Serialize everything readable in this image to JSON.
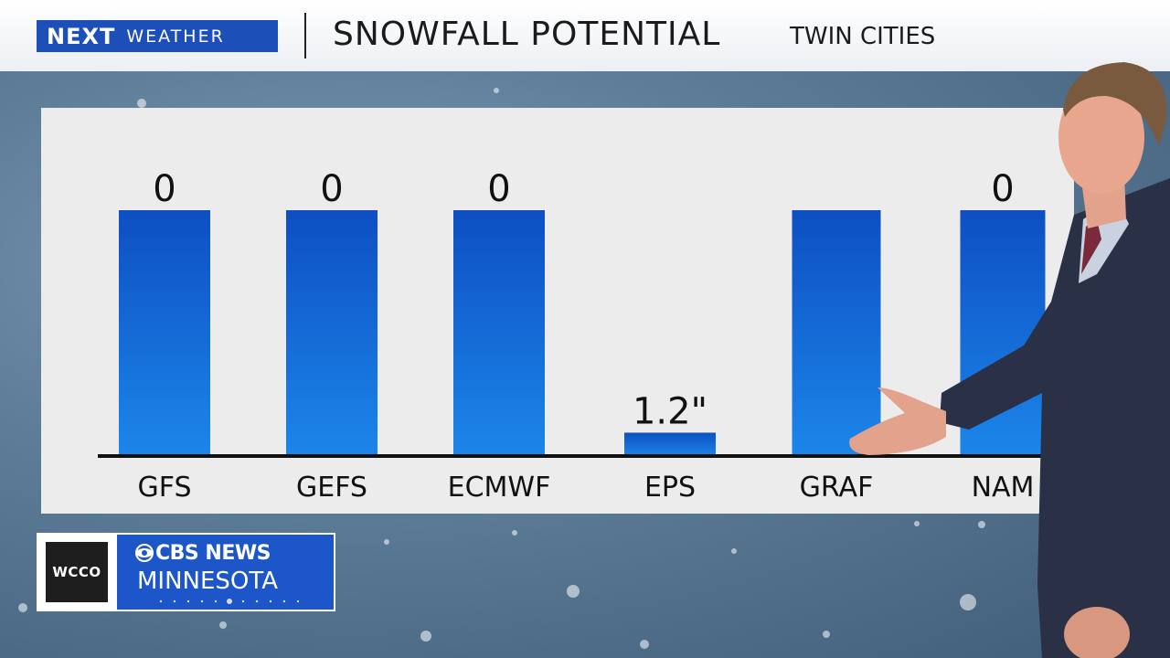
{
  "header": {
    "brand_next": "NEXT",
    "brand_weather": "WEATHER",
    "title": "SNOWFALL POTENTIAL",
    "subtitle": "TWIN CITIES"
  },
  "chart_data": {
    "type": "bar",
    "categories": [
      "GFS",
      "GEFS",
      "ECMWF",
      "EPS",
      "GRAF",
      "NAM"
    ],
    "series": [
      {
        "values": [
          0,
          0,
          0,
          1.2,
          null,
          0
        ]
      }
    ],
    "value_labels": [
      "0",
      "0",
      "0",
      "1.2\"",
      "",
      "0"
    ],
    "bar_heights_relative": [
      1,
      1,
      1,
      0.095,
      1,
      1
    ],
    "grid": false,
    "colors": {
      "bar_top": "#0d4fc2",
      "bar_bottom": "#1c86ea",
      "panel": "#ececec"
    }
  },
  "logo": {
    "station": "WCCO",
    "network": "CBS NEWS",
    "region": "MINNESOTA"
  }
}
